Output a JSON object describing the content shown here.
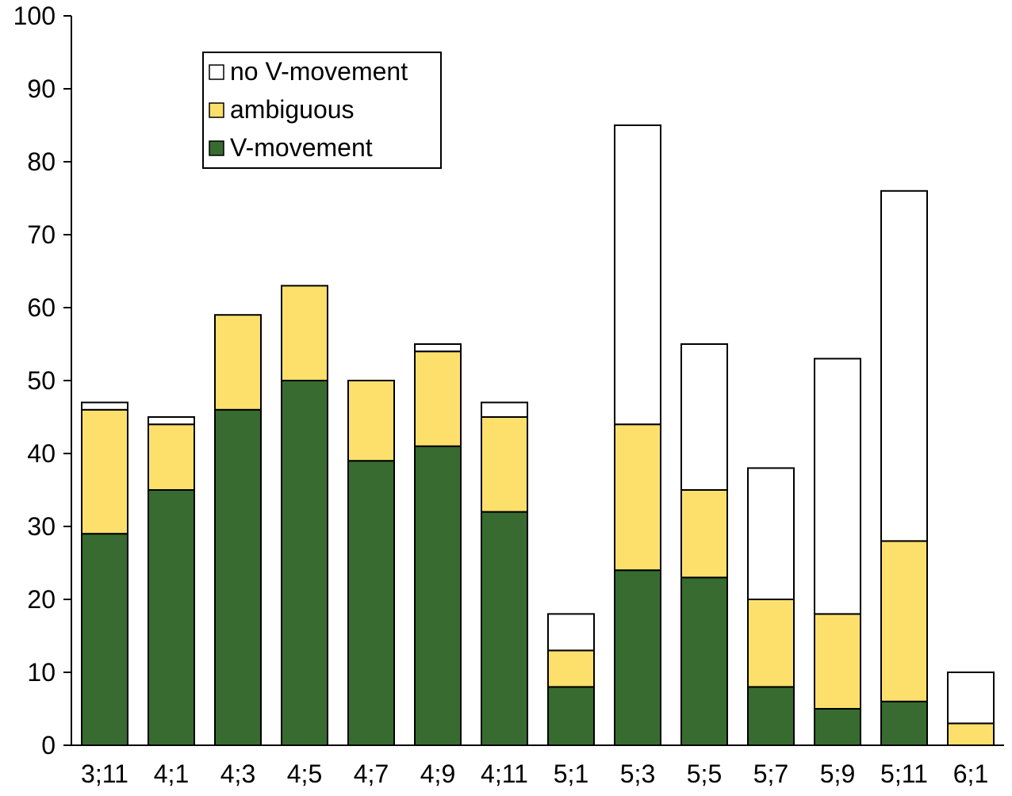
{
  "chart_data": {
    "type": "bar",
    "stacked": true,
    "title": "",
    "xlabel": "",
    "ylabel": "",
    "ylim": [
      0,
      100
    ],
    "yticks": [
      0,
      10,
      20,
      30,
      40,
      50,
      60,
      70,
      80,
      90,
      100
    ],
    "categories": [
      "3;11",
      "4;1",
      "4;3",
      "4;5",
      "4;7",
      "4;9",
      "4;11",
      "5;1",
      "5;3",
      "5;5",
      "5;7",
      "5;9",
      "5;11",
      "6;1"
    ],
    "series": [
      {
        "name": "V-movement",
        "color": "#376b30",
        "values": [
          29,
          35,
          46,
          50,
          39,
          41,
          32,
          8,
          24,
          23,
          8,
          5,
          6,
          0
        ]
      },
      {
        "name": "ambiguous",
        "color": "#fde06b",
        "values": [
          17,
          9,
          13,
          13,
          11,
          13,
          13,
          5,
          20,
          12,
          12,
          13,
          22,
          3
        ]
      },
      {
        "name": "no V-movement",
        "color": "#ffffff",
        "values": [
          1,
          1,
          0,
          0,
          0,
          1,
          2,
          5,
          41,
          20,
          18,
          35,
          48,
          7
        ]
      }
    ],
    "legend": {
      "position": "top-left",
      "order": [
        "no V-movement",
        "ambiguous",
        "V-movement"
      ]
    },
    "grid": false
  }
}
